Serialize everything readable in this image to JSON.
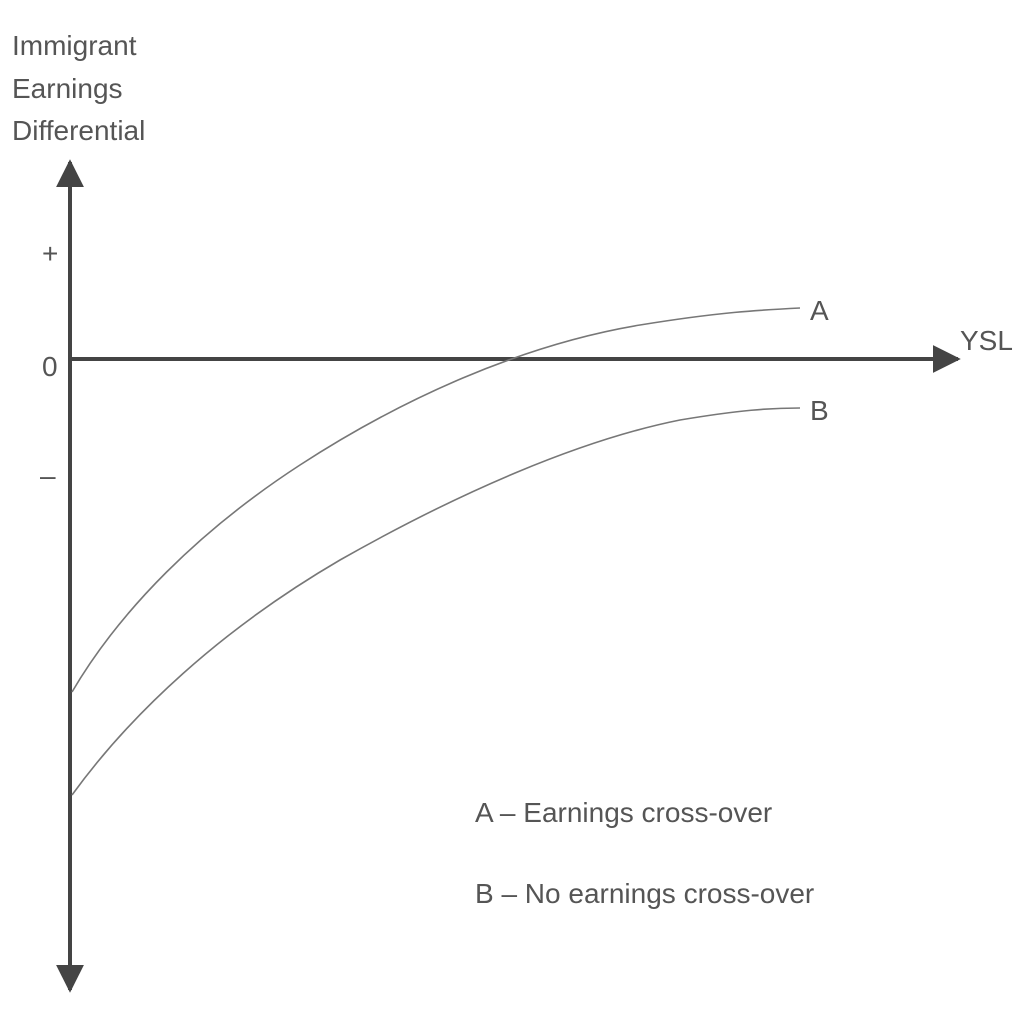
{
  "y_axis": {
    "label_lines": [
      "Immigrant",
      "Earnings",
      "Differential"
    ],
    "ticks": [
      "+",
      "0",
      "–"
    ]
  },
  "x_axis": {
    "label": "YSL"
  },
  "curves": [
    {
      "label": "A"
    },
    {
      "label": "B"
    }
  ],
  "legend": [
    "A – Earnings cross-over",
    "B – No earnings cross-over"
  ]
}
